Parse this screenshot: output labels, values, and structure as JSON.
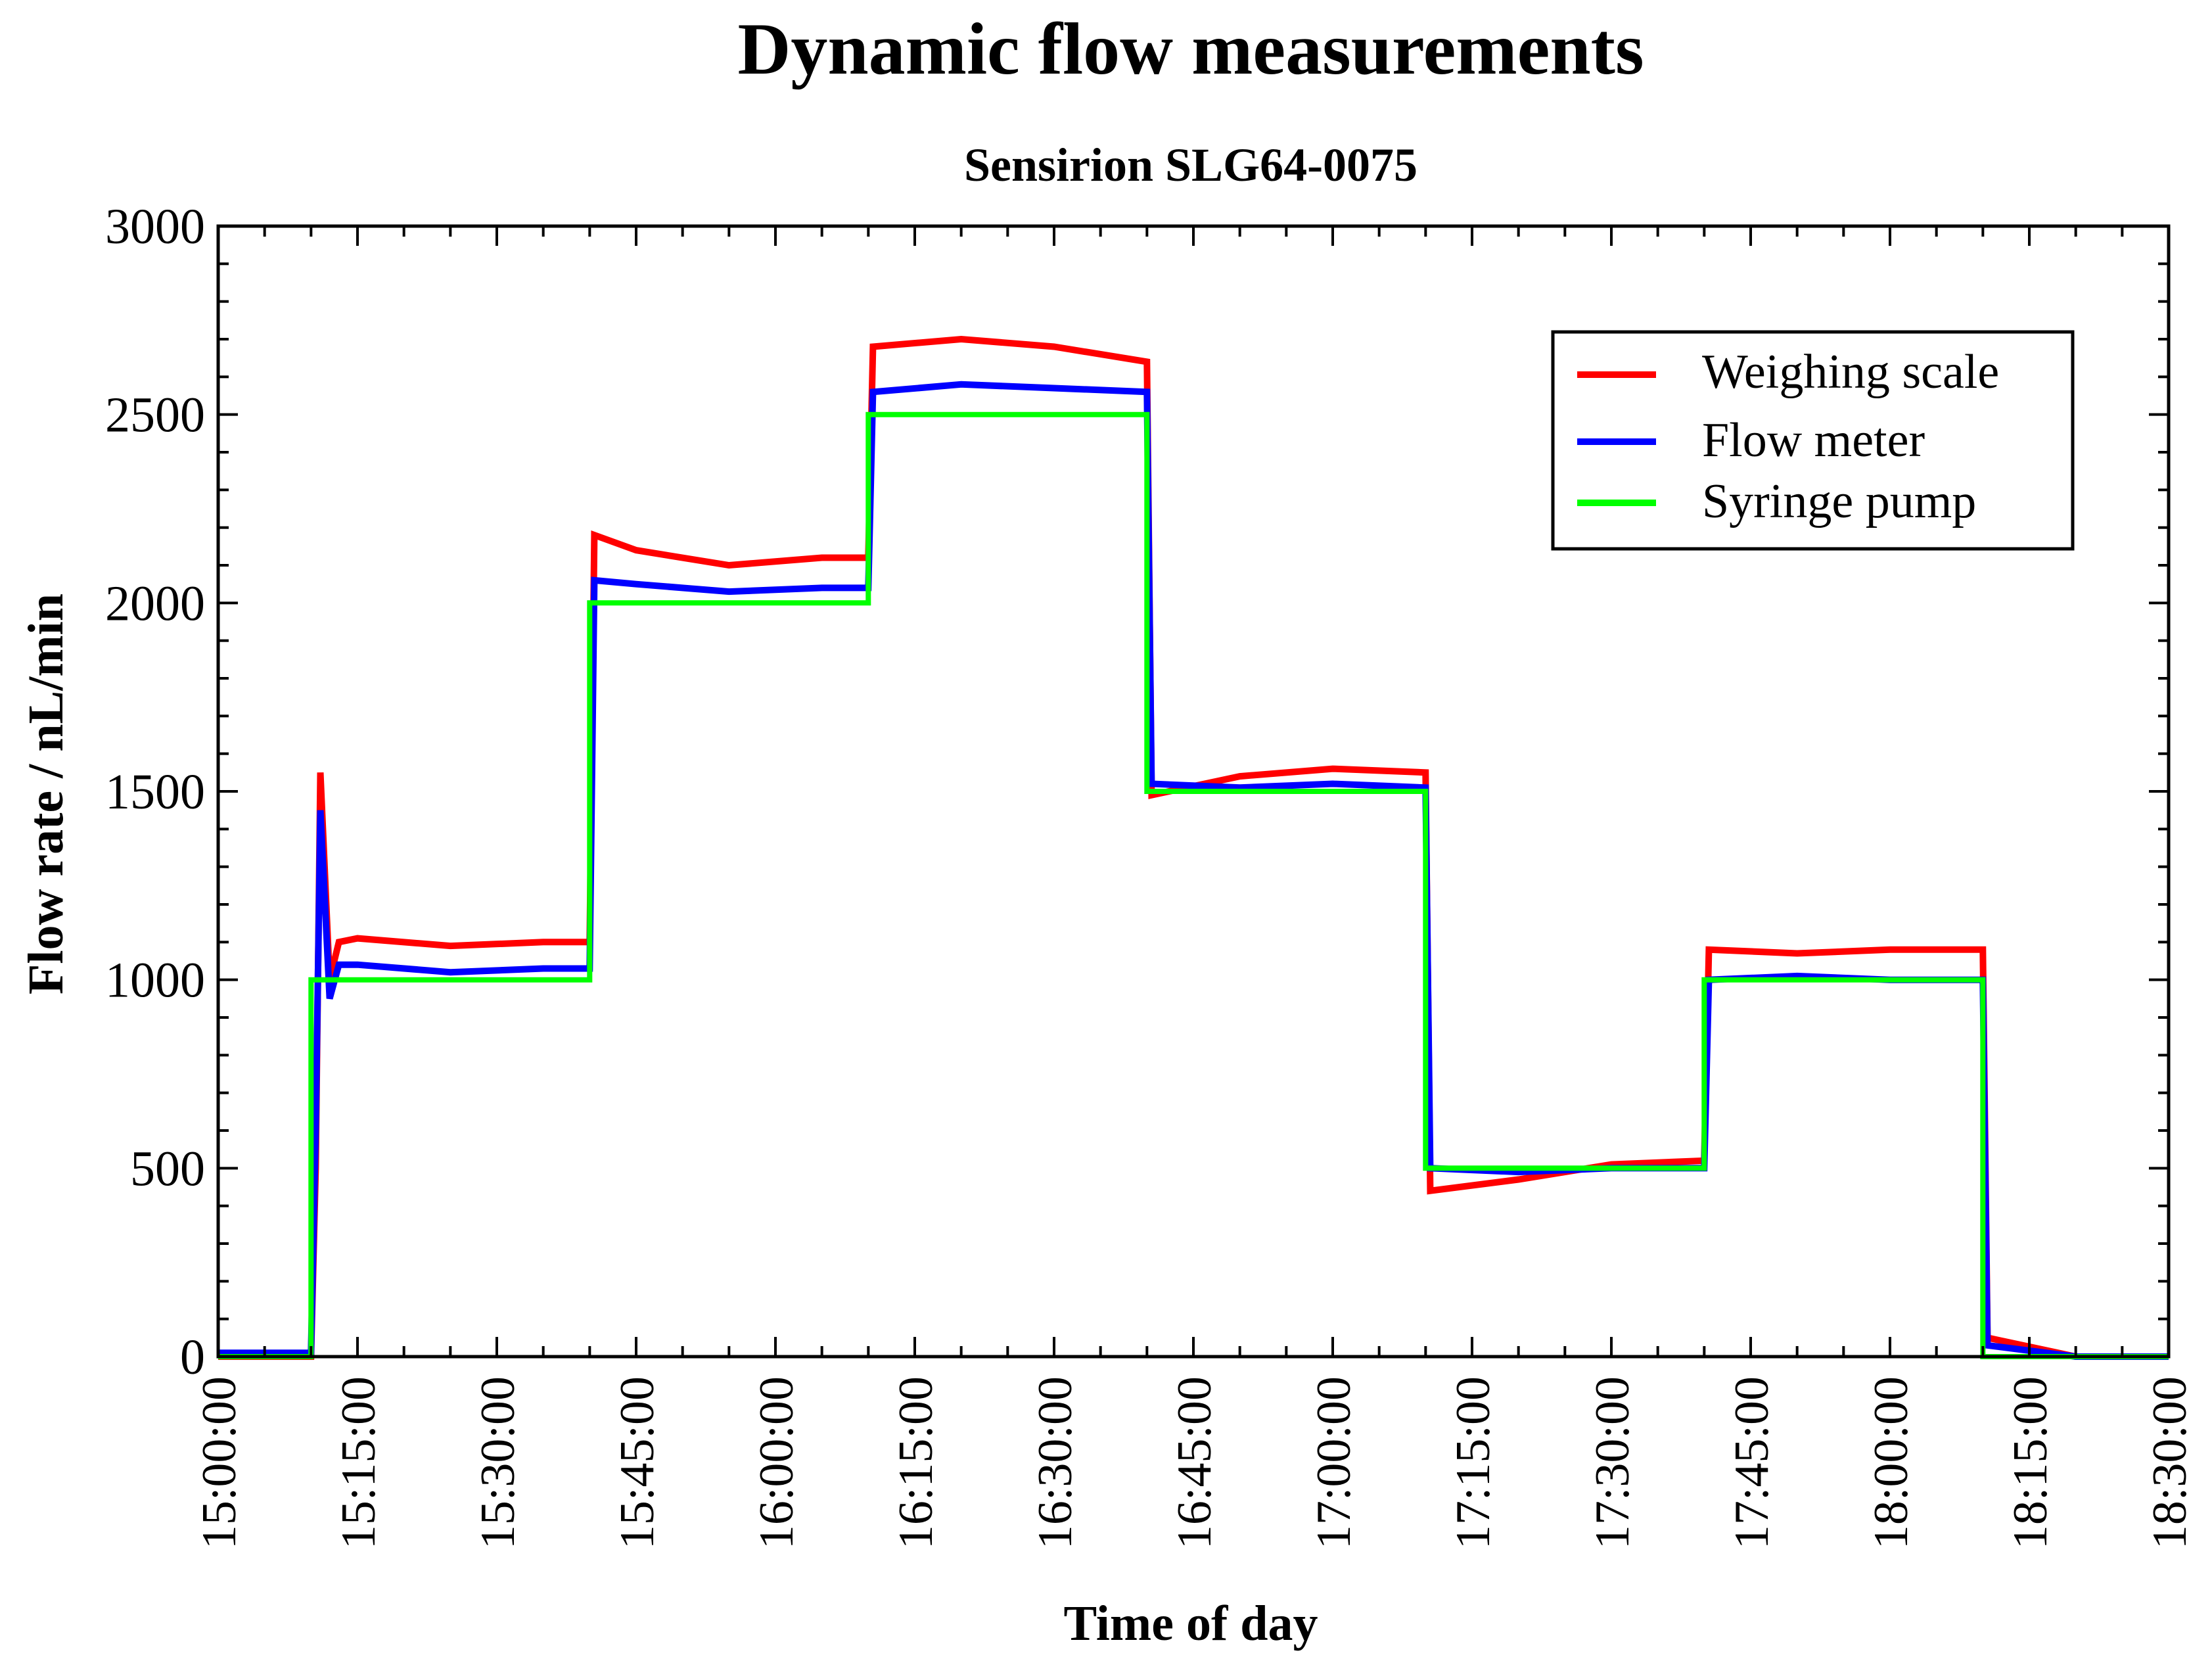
{
  "chart_data": {
    "type": "line",
    "title": "Dynamic flow measurements",
    "subtitle": "Sensirion SLG64-0075",
    "xlabel": "Time of day",
    "ylabel": "Flow rate / nL/min",
    "xlim": [
      0,
      210
    ],
    "ylim": [
      0,
      3000
    ],
    "x_unit": "minutes after 15:00:00",
    "x_ticks": [
      {
        "value": 0,
        "label": "15:00:00"
      },
      {
        "value": 15,
        "label": "15:15:00"
      },
      {
        "value": 30,
        "label": "15:30:00"
      },
      {
        "value": 45,
        "label": "15:45:00"
      },
      {
        "value": 60,
        "label": "16:00:00"
      },
      {
        "value": 75,
        "label": "16:15:00"
      },
      {
        "value": 90,
        "label": "16:30:00"
      },
      {
        "value": 105,
        "label": "16:45:00"
      },
      {
        "value": 120,
        "label": "17:00:00"
      },
      {
        "value": 135,
        "label": "17:15:00"
      },
      {
        "value": 150,
        "label": "17:30:00"
      },
      {
        "value": 165,
        "label": "17:45:00"
      },
      {
        "value": 180,
        "label": "18:00:00"
      },
      {
        "value": 195,
        "label": "18:15:00"
      },
      {
        "value": 210,
        "label": "18:30:00"
      }
    ],
    "y_ticks": [
      {
        "value": 0,
        "label": "0"
      },
      {
        "value": 500,
        "label": "500"
      },
      {
        "value": 1000,
        "label": "1000"
      },
      {
        "value": 1500,
        "label": "1500"
      },
      {
        "value": 2000,
        "label": "2000"
      },
      {
        "value": 2500,
        "label": "2500"
      },
      {
        "value": 3000,
        "label": "3000"
      }
    ],
    "legend": {
      "position": "top-right",
      "entries": [
        "Weighing scale",
        "Flow meter",
        "Syringe pump"
      ]
    },
    "series": [
      {
        "name": "Syringe pump",
        "color": "#00ff00",
        "x": [
          0,
          10,
          10,
          40,
          40,
          70,
          70,
          100,
          100,
          130,
          130,
          160,
          160,
          190,
          190,
          210
        ],
        "y": [
          0,
          0,
          1000,
          1000,
          2000,
          2000,
          2500,
          2500,
          1500,
          1500,
          500,
          500,
          1000,
          1000,
          0,
          0
        ]
      },
      {
        "name": "Flow meter",
        "color": "#0000ff",
        "x": [
          0,
          10,
          10.5,
          11,
          12,
          13,
          15,
          25,
          35,
          40,
          40.5,
          45,
          55,
          65,
          70,
          70.5,
          80,
          90,
          100,
          100.5,
          110,
          120,
          130,
          130.5,
          140,
          150,
          160,
          160.5,
          170,
          180,
          190,
          190.5,
          200,
          210
        ],
        "y": [
          10,
          10,
          600,
          1450,
          950,
          1040,
          1040,
          1020,
          1030,
          1030,
          2060,
          2050,
          2030,
          2040,
          2040,
          2560,
          2580,
          2570,
          2560,
          1520,
          1510,
          1520,
          1510,
          500,
          490,
          500,
          500,
          1000,
          1010,
          1000,
          1000,
          30,
          0,
          0
        ]
      },
      {
        "name": "Weighing scale",
        "color": "#ff0000",
        "x": [
          0,
          10,
          10.5,
          11,
          12,
          13,
          15,
          25,
          35,
          40,
          40.5,
          45,
          55,
          65,
          70,
          70.5,
          80,
          90,
          100,
          100.5,
          110,
          120,
          130,
          130.5,
          140,
          150,
          160,
          160.5,
          170,
          180,
          190,
          190.5,
          200,
          210
        ],
        "y": [
          0,
          0,
          500,
          1550,
          1000,
          1100,
          1110,
          1090,
          1100,
          1100,
          2180,
          2140,
          2100,
          2120,
          2120,
          2680,
          2700,
          2680,
          2640,
          1490,
          1540,
          1560,
          1550,
          440,
          470,
          510,
          520,
          1080,
          1070,
          1080,
          1080,
          50,
          0,
          0
        ]
      }
    ]
  }
}
